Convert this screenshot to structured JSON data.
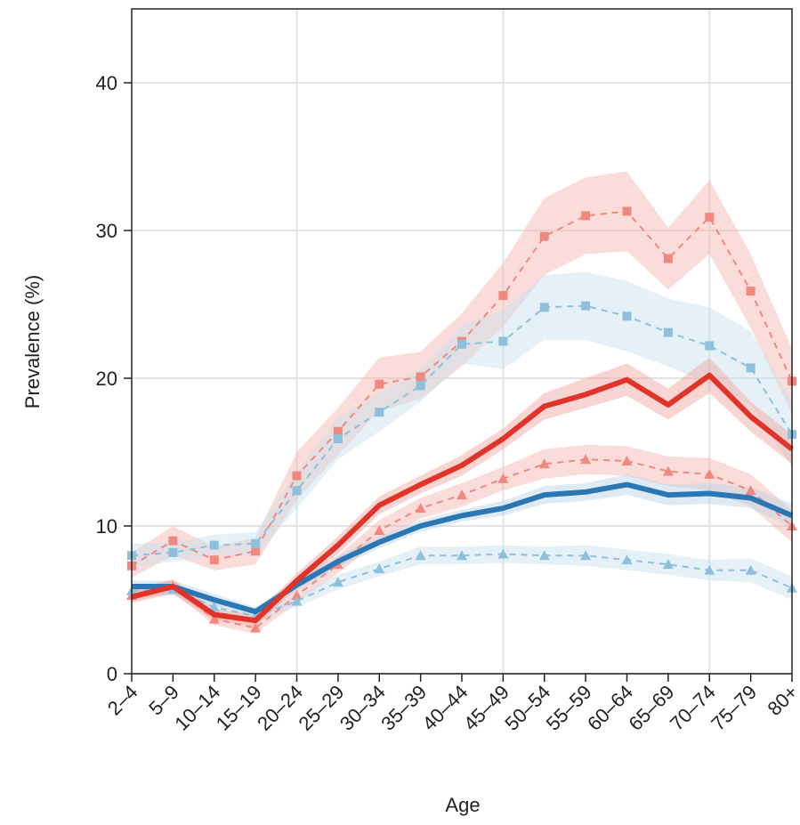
{
  "chart_data": {
    "type": "line",
    "x_label": "Age",
    "y_label": "Prevalence (%)",
    "categories": [
      "2–4",
      "5–9",
      "10–14",
      "15–19",
      "20–24",
      "25–29",
      "30–34",
      "35–39",
      "40–44",
      "45–49",
      "50–54",
      "55–59",
      "60–64",
      "65–69",
      "70–74",
      "75–79",
      "80+"
    ],
    "ylim": [
      0,
      45
    ],
    "yticks": [
      0,
      10,
      20,
      30,
      40
    ],
    "grid": true,
    "x_grid": [
      4,
      9,
      14
    ],
    "series": [
      {
        "color": "#f5b3ae",
        "linestyle": "dashed",
        "marker": "square",
        "line_color": "#f08880",
        "values": [
          7.3,
          9.0,
          7.7,
          8.3,
          13.4,
          16.4,
          19.6,
          20.1,
          22.5,
          25.6,
          29.6,
          31.0,
          31.3,
          28.1,
          30.9,
          25.9,
          19.8
        ],
        "lower": [
          6.5,
          8.0,
          7.0,
          7.4,
          11.8,
          14.8,
          17.8,
          18.6,
          20.8,
          23.5,
          27.0,
          28.4,
          28.6,
          26.0,
          28.4,
          23.4,
          17.6
        ],
        "upper": [
          8.2,
          10.0,
          8.6,
          9.2,
          15.0,
          18.0,
          21.4,
          21.8,
          24.4,
          27.8,
          32.2,
          33.6,
          34.0,
          30.2,
          33.4,
          28.4,
          22.0
        ]
      },
      {
        "color": "#c6e0ec",
        "linestyle": "dashed",
        "marker": "square",
        "line_color": "#8ec0dc",
        "values": [
          8.0,
          8.2,
          8.7,
          8.8,
          12.4,
          15.9,
          17.7,
          19.5,
          22.3,
          22.5,
          24.8,
          24.9,
          24.2,
          23.1,
          22.2,
          20.7,
          16.2
        ],
        "lower": [
          7.2,
          7.6,
          8.0,
          8.0,
          11.2,
          14.5,
          16.4,
          18.4,
          21.0,
          20.6,
          22.6,
          22.6,
          21.8,
          20.8,
          19.6,
          18.2,
          14.0
        ],
        "upper": [
          8.8,
          8.9,
          9.4,
          9.6,
          13.6,
          17.3,
          19.0,
          20.6,
          23.6,
          24.6,
          27.0,
          27.2,
          26.6,
          25.4,
          24.8,
          23.2,
          18.4
        ]
      },
      {
        "color": "#f5b3ae",
        "linestyle": "dashed",
        "marker": "triangle",
        "line_color": "#f08880",
        "values": [
          5.3,
          5.9,
          3.7,
          3.1,
          5.3,
          7.4,
          9.7,
          11.2,
          12.1,
          13.2,
          14.2,
          14.5,
          14.4,
          13.7,
          13.5,
          12.4,
          10.0
        ],
        "lower": [
          4.9,
          5.5,
          3.3,
          2.7,
          4.8,
          6.8,
          9.0,
          10.5,
          11.3,
          12.4,
          13.2,
          13.5,
          13.4,
          12.7,
          12.4,
          11.3,
          8.9
        ],
        "upper": [
          5.7,
          6.3,
          4.1,
          3.5,
          5.8,
          8.0,
          10.4,
          11.9,
          12.9,
          14.0,
          15.2,
          15.5,
          15.4,
          14.7,
          14.6,
          13.5,
          11.1
        ]
      },
      {
        "color": "#c6e0ec",
        "linestyle": "dashed",
        "marker": "triangle",
        "line_color": "#8ec0dc",
        "values": [
          5.6,
          5.7,
          4.5,
          3.9,
          4.9,
          6.2,
          7.1,
          8.0,
          8.0,
          8.1,
          8.0,
          8.0,
          7.7,
          7.4,
          7.0,
          7.0,
          5.8
        ],
        "lower": [
          5.2,
          5.3,
          4.1,
          3.5,
          4.5,
          5.7,
          6.6,
          7.4,
          7.4,
          7.5,
          7.4,
          7.3,
          7.0,
          6.7,
          6.3,
          6.2,
          5.0
        ],
        "upper": [
          6.0,
          6.1,
          4.9,
          4.3,
          5.3,
          6.7,
          7.6,
          8.6,
          8.6,
          8.7,
          8.6,
          8.7,
          8.4,
          8.1,
          7.7,
          7.8,
          6.6
        ]
      },
      {
        "color": "#b7d3e6",
        "linestyle": "solid",
        "line_color": "#2a77b4",
        "values": [
          5.9,
          5.9,
          5.0,
          4.2,
          6.0,
          7.6,
          8.9,
          10.0,
          10.7,
          11.2,
          12.1,
          12.3,
          12.8,
          12.1,
          12.2,
          11.9,
          10.7
        ],
        "lower": [
          5.5,
          5.5,
          4.6,
          3.9,
          5.6,
          7.2,
          8.5,
          9.6,
          10.3,
          10.7,
          11.5,
          11.7,
          12.1,
          11.4,
          11.5,
          11.2,
          9.9
        ],
        "upper": [
          6.3,
          6.3,
          5.4,
          4.5,
          6.4,
          8.0,
          9.3,
          10.4,
          11.1,
          11.7,
          12.7,
          12.9,
          13.5,
          12.8,
          12.9,
          12.6,
          11.5
        ]
      },
      {
        "color": "#f0a19b",
        "linestyle": "solid",
        "line_color": "#e0342a",
        "values": [
          5.2,
          5.9,
          4.0,
          3.6,
          6.3,
          8.7,
          11.4,
          12.8,
          14.1,
          15.9,
          18.1,
          18.9,
          19.9,
          18.2,
          20.2,
          17.4,
          15.2
        ],
        "lower": [
          4.8,
          5.4,
          3.6,
          3.2,
          5.8,
          8.1,
          10.8,
          12.2,
          13.4,
          15.2,
          17.2,
          18.0,
          18.8,
          17.2,
          19.0,
          16.4,
          14.2
        ],
        "upper": [
          5.7,
          6.4,
          4.4,
          4.0,
          6.8,
          9.3,
          12.0,
          13.4,
          14.8,
          16.6,
          19.0,
          20.0,
          21.0,
          19.3,
          21.4,
          18.4,
          16.2
        ]
      }
    ]
  }
}
